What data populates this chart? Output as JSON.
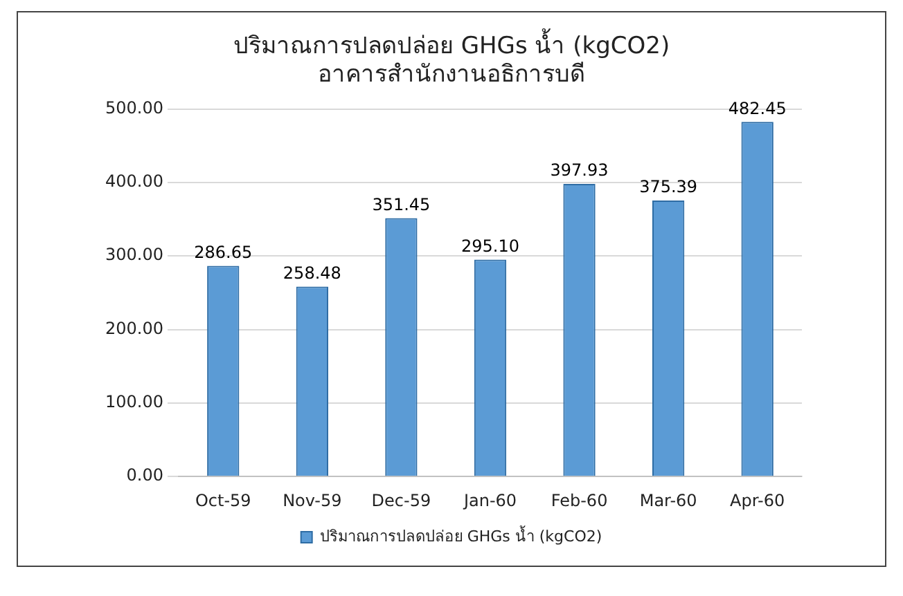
{
  "chart_data": {
    "type": "bar",
    "title": "ปริมาณการปลดปล่อย GHGs น้ำ (kgCO2)",
    "subtitle": "อาคารสำนักงานอธิการบดี",
    "categories": [
      "Oct-59",
      "Nov-59",
      "Dec-59",
      "Jan-60",
      "Feb-60",
      "Mar-60",
      "Apr-60"
    ],
    "series": [
      {
        "name": "ปริมาณการปลดปล่อย GHGs น้ำ (kgCO2)",
        "color": "#5b9bd5",
        "values": [
          286.65,
          258.48,
          351.45,
          295.1,
          397.93,
          375.39,
          482.45
        ],
        "value_labels": [
          "286.65",
          "258.48",
          "351.45",
          "295.10",
          "397.93",
          "375.39",
          "482.45"
        ]
      }
    ],
    "ylim": [
      0,
      500
    ],
    "yticks": [
      {
        "value": 0,
        "label": "0.00"
      },
      {
        "value": 100,
        "label": "100.00"
      },
      {
        "value": 200,
        "label": "200.00"
      },
      {
        "value": 300,
        "label": "300.00"
      },
      {
        "value": 400,
        "label": "400.00"
      },
      {
        "value": 500,
        "label": "500.00"
      }
    ],
    "grid": "y",
    "legend": "bottom"
  }
}
